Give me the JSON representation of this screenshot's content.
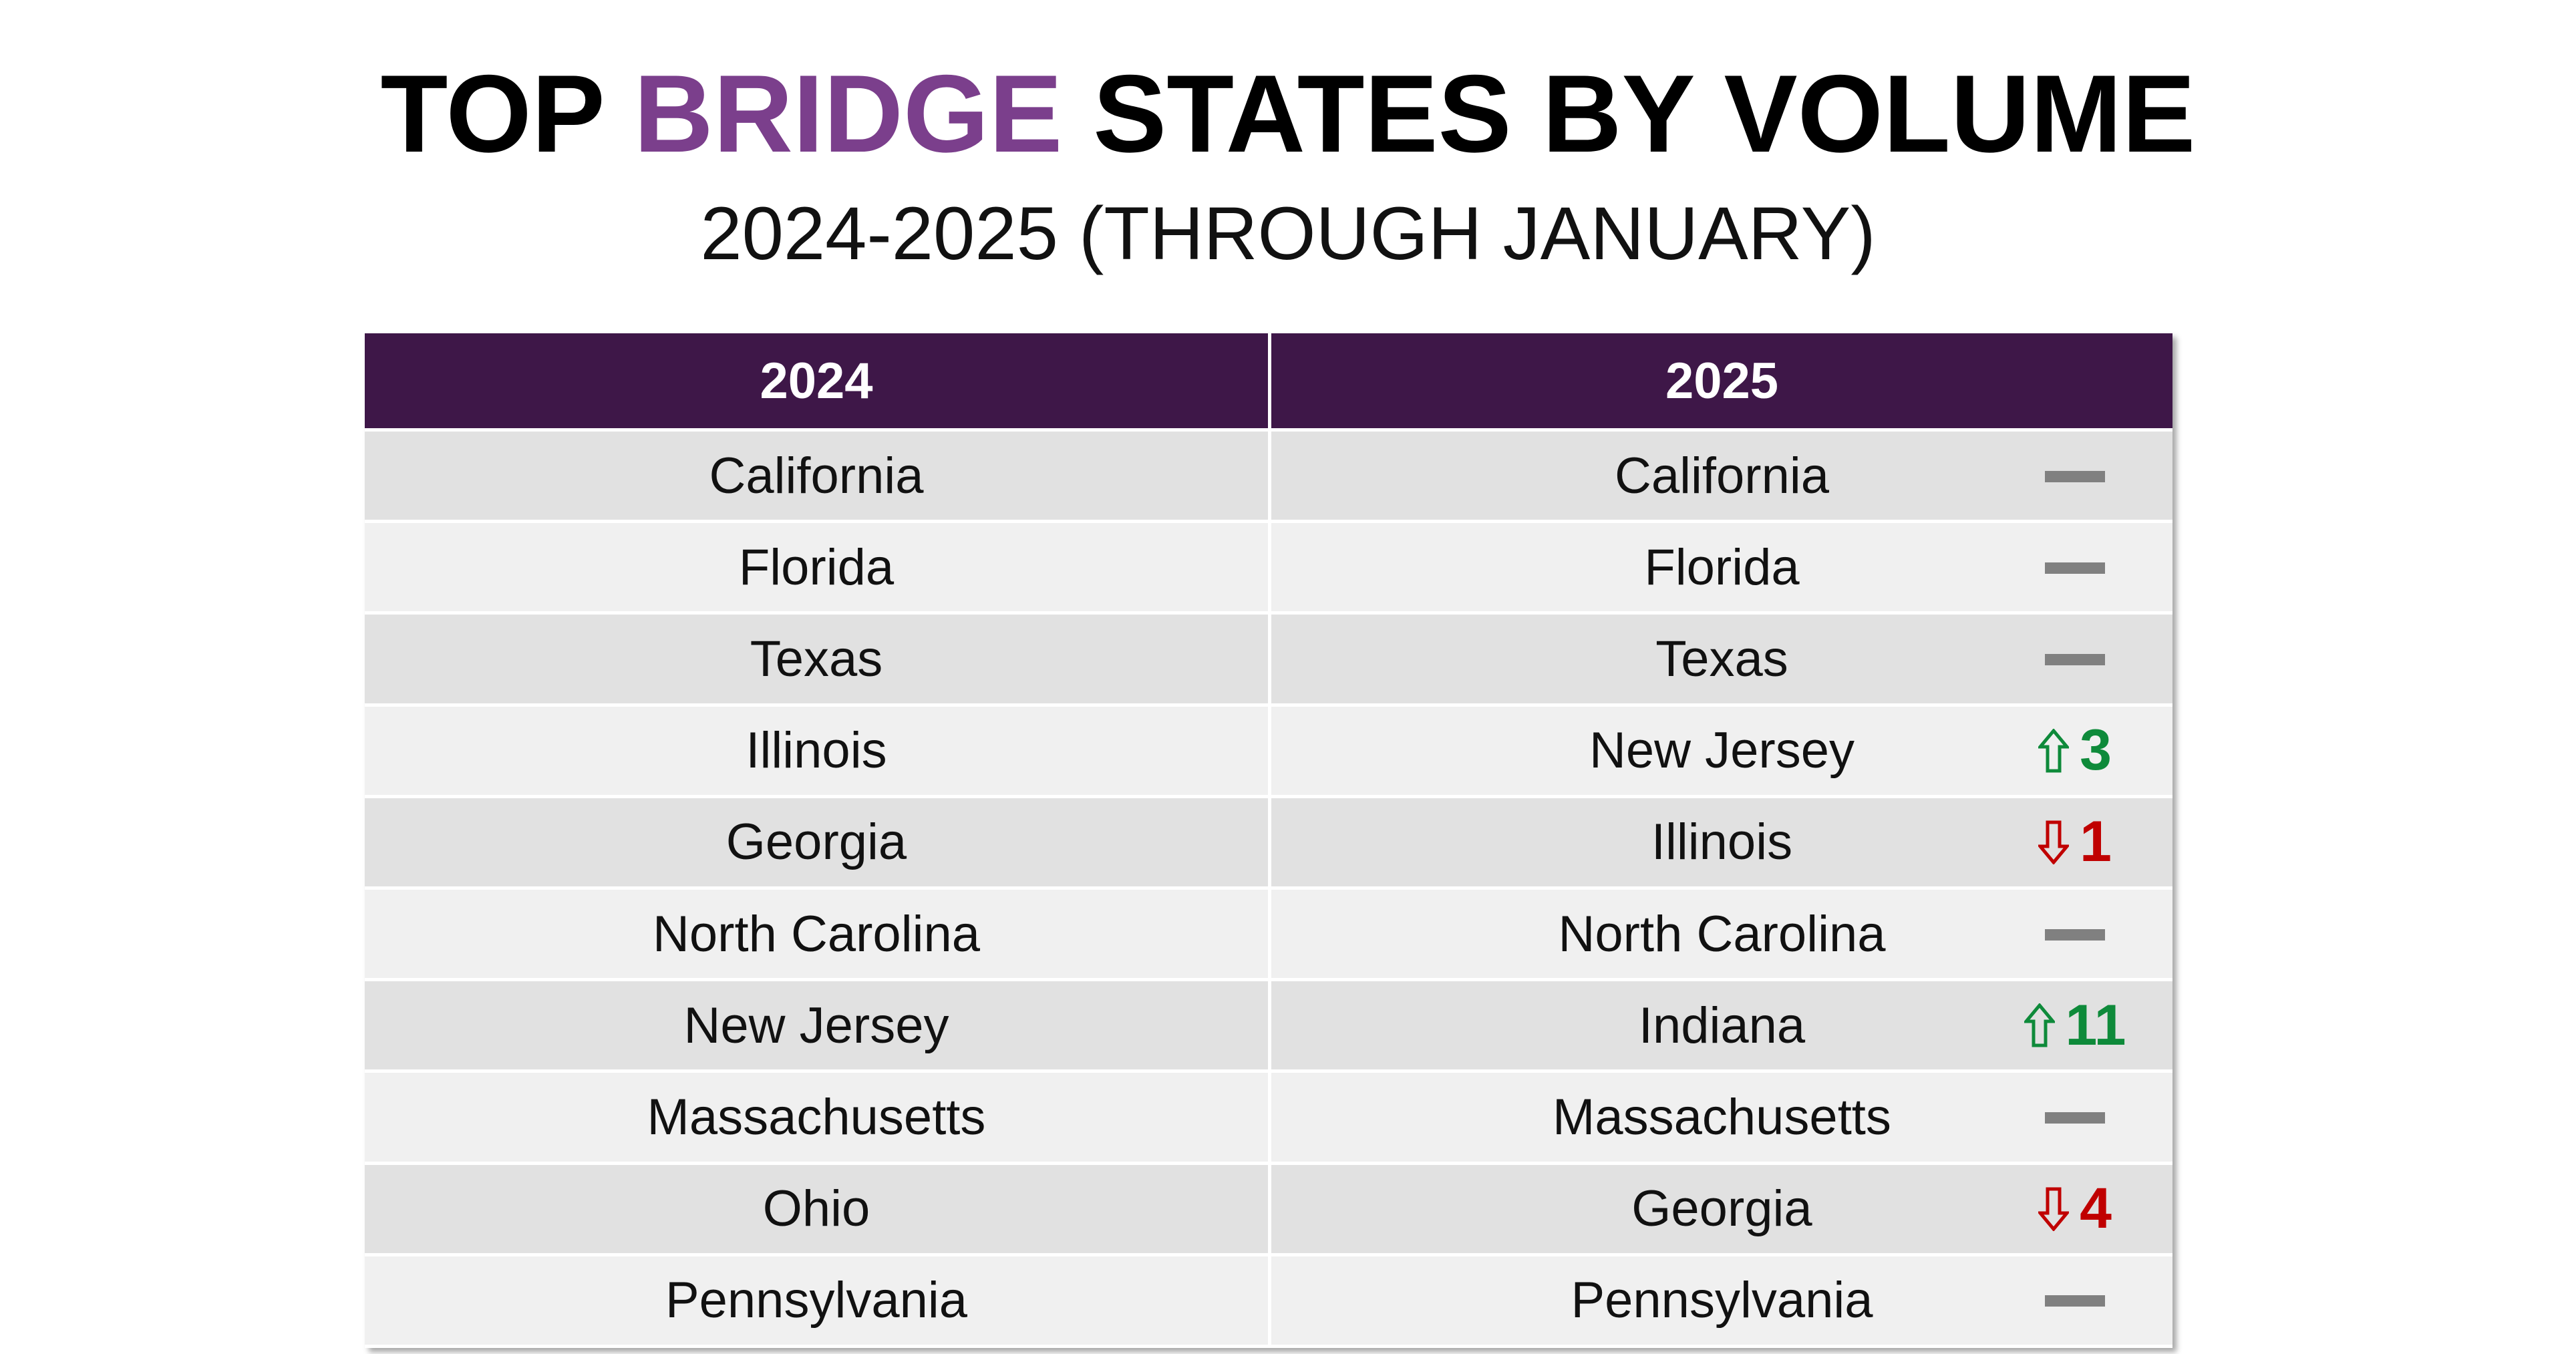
{
  "header": {
    "title": [
      {
        "text": "TOP ",
        "color": "#000000"
      },
      {
        "text": "BRIDGE",
        "color": "#7b3f8c"
      },
      {
        "text": " STATES BY VOLUME",
        "color": "#000000"
      }
    ],
    "subtitle": "2024-2025 (THROUGH JANUARY)"
  },
  "table": {
    "columns": [
      "2024",
      "2025"
    ],
    "rows": [
      {
        "2024": "California",
        "2025": "California",
        "change": null
      },
      {
        "2024": "Florida",
        "2025": "Florida",
        "change": null
      },
      {
        "2024": "Texas",
        "2025": "Texas",
        "change": null
      },
      {
        "2024": "Illinois",
        "2025": "New Jersey",
        "change": {
          "direction": "up",
          "value": 3
        }
      },
      {
        "2024": "Georgia",
        "2025": "Illinois",
        "change": {
          "direction": "down",
          "value": 1
        }
      },
      {
        "2024": "North Carolina",
        "2025": "North Carolina",
        "change": null
      },
      {
        "2024": "New Jersey",
        "2025": "Indiana",
        "change": {
          "direction": "up",
          "value": 11
        }
      },
      {
        "2024": "Massachusetts",
        "2025": "Massachusetts",
        "change": null
      },
      {
        "2024": "Ohio",
        "2025": "Georgia",
        "change": {
          "direction": "down",
          "value": 4
        }
      },
      {
        "2024": "Pennsylvania",
        "2025": "Pennsylvania",
        "change": null
      }
    ]
  }
}
